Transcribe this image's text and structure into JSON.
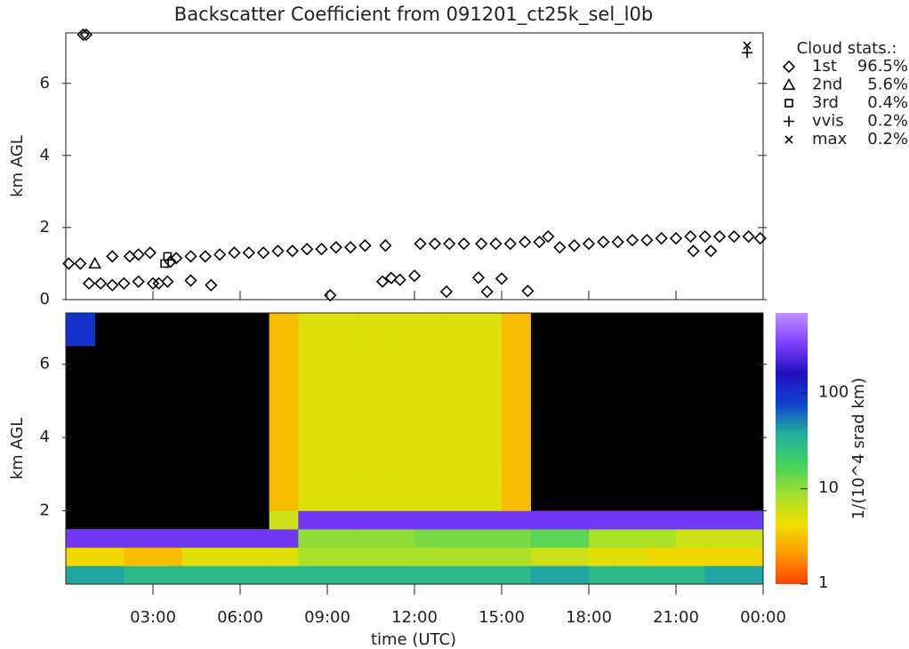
{
  "chart_data": [
    {
      "type": "scatter",
      "title": "Backscatter Coefficient from 091201_ct25k_sel_l0b",
      "y_label": "km AGL",
      "xlim": [
        0,
        24
      ],
      "ylim": [
        0,
        7.4
      ],
      "yticks": [
        0,
        2,
        4,
        6
      ],
      "legend": "right",
      "legend_title": "Cloud stats.:",
      "series": [
        {
          "name": "1st",
          "percent": "96.5%",
          "marker": "diamond",
          "color": "#000000",
          "x": [
            0.1,
            0.5,
            0.6,
            0.7,
            0.8,
            1.2,
            1.6,
            1.6,
            2.0,
            2.2,
            2.5,
            2.5,
            2.9,
            3.0,
            3.2,
            3.5,
            3.6,
            3.8,
            4.3,
            4.3,
            4.8,
            5.0,
            5.3,
            5.8,
            6.3,
            6.8,
            7.3,
            7.8,
            8.3,
            8.8,
            9.1,
            9.3,
            9.8,
            10.3,
            10.9,
            11.0,
            11.2,
            11.5,
            12.0,
            12.2,
            12.7,
            13.1,
            13.2,
            13.7,
            14.2,
            14.3,
            14.5,
            14.8,
            15.0,
            15.3,
            15.8,
            15.9,
            16.3,
            16.6,
            17.0,
            17.5,
            18.0,
            18.5,
            19.0,
            19.5,
            20.0,
            20.5,
            21.0,
            21.5,
            21.6,
            22.0,
            22.2,
            22.5,
            23.0,
            23.5,
            23.9
          ],
          "y": [
            1.0,
            1.0,
            7.35,
            7.35,
            0.45,
            0.45,
            0.4,
            1.2,
            0.45,
            1.2,
            0.5,
            1.25,
            1.3,
            0.45,
            0.45,
            0.5,
            1.05,
            1.15,
            1.2,
            0.53,
            1.2,
            0.4,
            1.25,
            1.3,
            1.3,
            1.3,
            1.35,
            1.35,
            1.4,
            1.4,
            0.12,
            1.45,
            1.45,
            1.5,
            0.5,
            1.5,
            0.6,
            0.55,
            0.66,
            1.55,
            1.55,
            0.22,
            1.55,
            1.55,
            0.61,
            1.55,
            0.22,
            1.55,
            0.58,
            1.55,
            1.6,
            0.24,
            1.6,
            1.75,
            1.45,
            1.5,
            1.55,
            1.6,
            1.6,
            1.65,
            1.65,
            1.7,
            1.7,
            1.75,
            1.35,
            1.75,
            1.35,
            1.75,
            1.75,
            1.75,
            1.7
          ]
        },
        {
          "name": "2nd",
          "percent": "5.6%",
          "marker": "triangle",
          "color": "#000000",
          "x": [
            1.0
          ],
          "y": [
            1.0
          ]
        },
        {
          "name": "3rd",
          "percent": "0.4%",
          "marker": "square",
          "color": "#000000",
          "x": [
            3.4,
            3.5
          ],
          "y": [
            1.0,
            1.2
          ]
        },
        {
          "name": "vvis",
          "percent": "0.2%",
          "marker": "plus",
          "color": "#000000",
          "x": [
            23.45
          ],
          "y": [
            6.85
          ]
        },
        {
          "name": "max",
          "percent": "0.2%",
          "marker": "cross",
          "color": "#000000",
          "x": [
            23.45
          ],
          "y": [
            7.05
          ]
        }
      ]
    },
    {
      "type": "heatmap",
      "y_label": "km AGL",
      "x_label": "time (UTC)",
      "xlim": [
        0,
        24
      ],
      "ylim": [
        0,
        7.4
      ],
      "yticks": [
        2,
        4,
        6
      ],
      "xticks": [
        {
          "value": 3,
          "label": "03:00"
        },
        {
          "value": 6,
          "label": "06:00"
        },
        {
          "value": 9,
          "label": "09:00"
        },
        {
          "value": 12,
          "label": "12:00"
        },
        {
          "value": 15,
          "label": "15:00"
        },
        {
          "value": 18,
          "label": "18:00"
        },
        {
          "value": 21,
          "label": "21:00"
        },
        {
          "value": 24,
          "label": "00:00"
        }
      ],
      "x_edges": [
        0,
        1,
        2,
        3,
        4,
        5,
        6,
        7,
        8,
        9,
        10,
        11,
        12,
        13,
        14,
        15,
        16,
        17,
        18,
        19,
        20,
        21,
        22,
        23,
        24
      ],
      "y_edges": [
        0,
        0.5,
        1,
        1.5,
        2,
        2.5,
        3,
        3.5,
        4,
        4.5,
        5,
        5.5,
        6,
        6.5,
        7,
        7.4
      ],
      "background": "#000000",
      "values": [
        [
          40,
          40,
          30,
          30,
          30,
          30,
          30,
          30,
          30,
          30,
          30,
          30,
          30,
          30,
          30,
          30,
          40,
          40,
          30,
          30,
          30,
          30,
          40,
          40
        ],
        [
          4,
          4,
          3,
          3,
          5,
          5,
          5,
          5,
          8,
          8,
          8,
          8,
          8,
          8,
          8,
          8,
          6,
          6,
          5,
          5,
          4,
          4,
          4,
          4
        ],
        [
          300,
          300,
          300,
          300,
          300,
          300,
          300,
          300,
          10,
          10,
          10,
          10,
          12,
          12,
          12,
          12,
          15,
          15,
          8,
          8,
          8,
          6,
          6,
          6
        ],
        [
          null,
          null,
          null,
          null,
          null,
          null,
          null,
          6,
          300,
          300,
          300,
          300,
          300,
          300,
          300,
          300,
          300,
          300,
          300,
          300,
          300,
          300,
          300,
          300
        ],
        [
          null,
          null,
          null,
          null,
          null,
          null,
          null,
          3,
          5,
          5,
          5,
          5,
          5,
          5,
          5,
          3,
          null,
          null,
          null,
          null,
          null,
          null,
          null,
          null
        ],
        [
          null,
          null,
          null,
          null,
          null,
          null,
          null,
          3,
          5,
          5,
          5,
          5,
          5,
          5,
          5,
          3,
          null,
          null,
          null,
          null,
          null,
          null,
          null,
          null
        ],
        [
          null,
          null,
          null,
          null,
          null,
          null,
          null,
          3,
          5,
          5,
          5,
          5,
          5,
          5,
          5,
          3,
          null,
          null,
          null,
          null,
          null,
          null,
          null,
          null
        ],
        [
          null,
          null,
          null,
          null,
          null,
          null,
          null,
          3,
          5,
          5,
          5,
          5,
          5,
          5,
          5,
          3,
          null,
          null,
          null,
          null,
          null,
          null,
          null,
          null
        ],
        [
          null,
          null,
          null,
          null,
          null,
          null,
          null,
          3,
          5,
          5,
          5,
          5,
          5,
          5,
          5,
          3,
          null,
          null,
          null,
          null,
          null,
          null,
          null,
          null
        ],
        [
          null,
          null,
          null,
          null,
          null,
          null,
          null,
          3,
          5,
          5,
          5,
          5,
          5,
          5,
          5,
          3,
          null,
          null,
          null,
          null,
          null,
          null,
          null,
          null
        ],
        [
          null,
          null,
          null,
          null,
          null,
          null,
          null,
          3,
          5,
          5,
          5,
          5,
          5,
          5,
          5,
          3,
          null,
          null,
          null,
          null,
          null,
          null,
          null,
          null
        ],
        [
          null,
          null,
          null,
          null,
          null,
          null,
          null,
          3,
          5,
          5,
          5,
          5,
          5,
          5,
          5,
          3,
          null,
          null,
          null,
          null,
          null,
          null,
          null,
          null
        ],
        [
          null,
          null,
          null,
          null,
          null,
          null,
          null,
          3,
          5,
          5,
          5,
          5,
          5,
          5,
          5,
          3,
          null,
          null,
          null,
          null,
          null,
          null,
          null,
          null
        ],
        [
          100,
          null,
          null,
          null,
          null,
          null,
          null,
          3,
          5,
          5,
          5,
          5,
          5,
          5,
          5,
          3,
          null,
          null,
          null,
          null,
          null,
          null,
          null,
          null
        ],
        [
          100,
          null,
          null,
          null,
          null,
          null,
          null,
          3,
          5,
          5,
          5,
          5,
          5,
          5,
          5,
          3,
          null,
          null,
          null,
          null,
          null,
          null,
          null,
          null
        ]
      ],
      "colorbar": {
        "label": "1/(10^4 srad km)",
        "log": true,
        "zlim": [
          1,
          700
        ],
        "zticks": [
          1,
          10,
          100
        ],
        "colors": [
          "#ff4000",
          "#ff9a00",
          "#f0e000",
          "#a0e030",
          "#40d060",
          "#20b0a0",
          "#1040d0",
          "#2010c0",
          "#8040ff",
          "#c090ff"
        ]
      }
    }
  ]
}
